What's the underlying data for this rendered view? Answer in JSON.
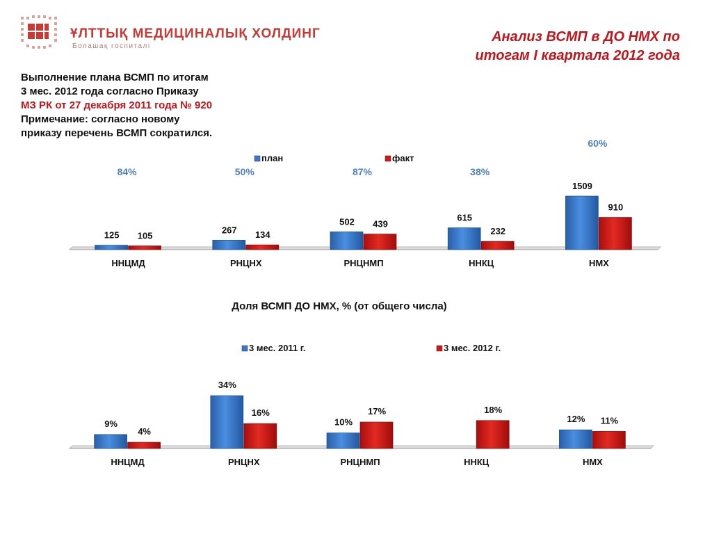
{
  "logo": {
    "title": "ҰЛТТЫҚ МЕДИЦИНАЛЫҚ ХОЛДИНГ",
    "subtitle": "Болашақ госпиталі",
    "color": "#c83a35"
  },
  "slide_title": {
    "line1": "Анализ ВСМП в  ДО НМХ по",
    "line2": "итогам I квартала 2012 года",
    "color": "#c0151b"
  },
  "info": {
    "line1": "Выполнение плана ВСМП  по итогам",
    "line2": "3 мес. 2012 года согласно Приказу",
    "line3": "МЗ РК от 27 декабря 2011 года № 920",
    "line4": "Примечание: согласно новому",
    "line5": "приказу перечень ВСМП сократился."
  },
  "colors": {
    "blue": "#3a78cc",
    "red": "#d01818",
    "percent_text": "#4f7fbf"
  },
  "chart_data": [
    {
      "type": "bar",
      "title": "",
      "categories": [
        "ННЦМД",
        "РНЦНХ",
        "РНЦНМП",
        "ННКЦ",
        "НМХ"
      ],
      "series": [
        {
          "name": "план",
          "values": [
            125,
            267,
            502,
            615,
            1509
          ],
          "color": "#3a78cc"
        },
        {
          "name": "факт",
          "values": [
            105,
            134,
            439,
            232,
            910
          ],
          "color": "#d01818"
        }
      ],
      "value_labels": {
        "план": [
          "125",
          "267",
          "502",
          "615",
          "1509"
        ],
        "факт": [
          "105",
          "134",
          "439",
          "232",
          "910"
        ]
      },
      "completion_percent": [
        "84%",
        "50%",
        "87%",
        "38%",
        "60%"
      ],
      "ylim": [
        0,
        1509
      ],
      "legend": "top-center",
      "grid": false
    },
    {
      "type": "bar",
      "title": "Доля ВСМП ДО НМХ, % (от общего числа)",
      "categories": [
        "ННЦМД",
        "РНЦНХ",
        "РНЦНМП",
        "ННКЦ",
        "НМХ"
      ],
      "series": [
        {
          "name": "3 мес. 2011 г.",
          "values": [
            9,
            34,
            10,
            null,
            12
          ],
          "color": "#3a78cc"
        },
        {
          "name": "3 мес. 2012 г.",
          "values": [
            4,
            16,
            17,
            18,
            11
          ],
          "color": "#d01818"
        }
      ],
      "value_labels": {
        "3 мес. 2011 г.": [
          "9%",
          "34%",
          "10%",
          "",
          "12%"
        ],
        "3 мес. 2012 г.": [
          "4%",
          "16%",
          "17%",
          "18%",
          "11%"
        ]
      },
      "unit": "%",
      "ylim": [
        0,
        34
      ],
      "legend": "top-center",
      "grid": false
    }
  ]
}
